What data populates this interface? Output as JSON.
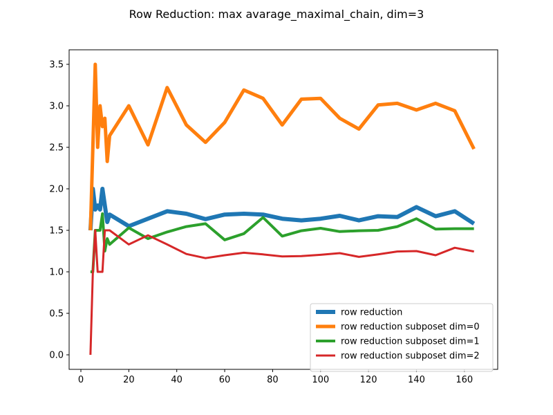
{
  "chart_data": {
    "type": "line",
    "title": "Row Reduction: max avarage_maximal_chain, dim=3",
    "xlabel": "",
    "ylabel": "",
    "xlim": [
      -4.9,
      173.9
    ],
    "ylim": [
      -0.175,
      3.675
    ],
    "x_ticks": [
      "0",
      "20",
      "40",
      "60",
      "80",
      "100",
      "120",
      "140",
      "160"
    ],
    "x_tick_values": [
      0,
      20,
      40,
      60,
      80,
      100,
      120,
      140,
      160
    ],
    "y_ticks": [
      "0.0",
      "0.5",
      "1.0",
      "1.5",
      "2.0",
      "2.5",
      "3.0",
      "3.5"
    ],
    "y_tick_values": [
      0.0,
      0.5,
      1.0,
      1.5,
      2.0,
      2.5,
      3.0,
      3.5
    ],
    "grid": false,
    "legend_position": "lower-right",
    "series": [
      {
        "name": "row reduction",
        "color": "#1f77b4",
        "linewidth": 6,
        "x": [
          4,
          5,
          6,
          7,
          8,
          9,
          10,
          11,
          12,
          20,
          28,
          36,
          44,
          52,
          60,
          68,
          76,
          84,
          92,
          100,
          108,
          116,
          124,
          132,
          140,
          148,
          156,
          164
        ],
        "y": [
          1.5,
          2.0,
          1.75,
          1.8,
          1.75,
          2.0,
          1.8,
          1.6,
          1.69,
          1.55,
          1.64,
          1.73,
          1.7,
          1.635,
          1.69,
          1.7,
          1.69,
          1.64,
          1.62,
          1.64,
          1.675,
          1.62,
          1.67,
          1.66,
          1.78,
          1.67,
          1.73,
          1.58
        ]
      },
      {
        "name": "row reduction subposet dim=0",
        "color": "#ff7f0e",
        "linewidth": 5,
        "x": [
          4,
          5,
          6,
          7,
          8,
          9,
          10,
          11,
          12,
          20,
          28,
          36,
          44,
          52,
          60,
          68,
          76,
          84,
          92,
          100,
          108,
          116,
          124,
          132,
          140,
          148,
          156,
          164
        ],
        "y": [
          1.5,
          2.5,
          3.5,
          2.5,
          3.0,
          2.75,
          2.85,
          2.33,
          2.64,
          3.0,
          2.53,
          3.22,
          2.77,
          2.56,
          2.8,
          3.19,
          3.09,
          2.77,
          3.08,
          3.09,
          2.85,
          2.72,
          3.01,
          3.03,
          2.95,
          3.03,
          2.94,
          2.48
        ]
      },
      {
        "name": "row reduction subposet dim=1",
        "color": "#2ca02c",
        "linewidth": 4,
        "x": [
          4,
          5,
          6,
          7,
          8,
          9,
          10,
          11,
          12,
          20,
          28,
          36,
          44,
          52,
          60,
          68,
          76,
          84,
          92,
          100,
          108,
          116,
          124,
          132,
          140,
          148,
          156,
          164
        ],
        "y": [
          1.0,
          1.0,
          1.5,
          1.5,
          1.5,
          1.7,
          1.25,
          1.4,
          1.33,
          1.53,
          1.4,
          1.48,
          1.545,
          1.58,
          1.385,
          1.46,
          1.655,
          1.43,
          1.495,
          1.525,
          1.485,
          1.495,
          1.5,
          1.545,
          1.64,
          1.515,
          1.52,
          1.52
        ]
      },
      {
        "name": "row reduction subposet dim=2",
        "color": "#d62728",
        "linewidth": 3,
        "x": [
          4,
          5,
          6,
          7,
          8,
          9,
          10,
          11,
          12,
          20,
          28,
          36,
          44,
          52,
          60,
          68,
          76,
          84,
          92,
          100,
          108,
          116,
          124,
          132,
          140,
          148,
          156,
          164
        ],
        "y": [
          0.0,
          1.0,
          1.5,
          1.0,
          1.0,
          1.0,
          1.5,
          1.5,
          1.5,
          1.33,
          1.44,
          1.33,
          1.215,
          1.165,
          1.2,
          1.23,
          1.21,
          1.185,
          1.19,
          1.205,
          1.225,
          1.18,
          1.21,
          1.245,
          1.25,
          1.2,
          1.29,
          1.245
        ]
      }
    ]
  }
}
